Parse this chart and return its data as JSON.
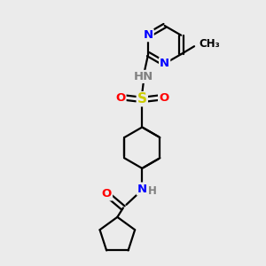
{
  "background_color": "#ebebeb",
  "bond_color": "#000000",
  "bond_width": 1.6,
  "atom_colors": {
    "N": "#0000ff",
    "O": "#ff0000",
    "S": "#cccc00",
    "H": "#808080",
    "C": "#000000"
  },
  "fs": 9.5,
  "fs_small": 8.5,
  "double_off": 0.08
}
